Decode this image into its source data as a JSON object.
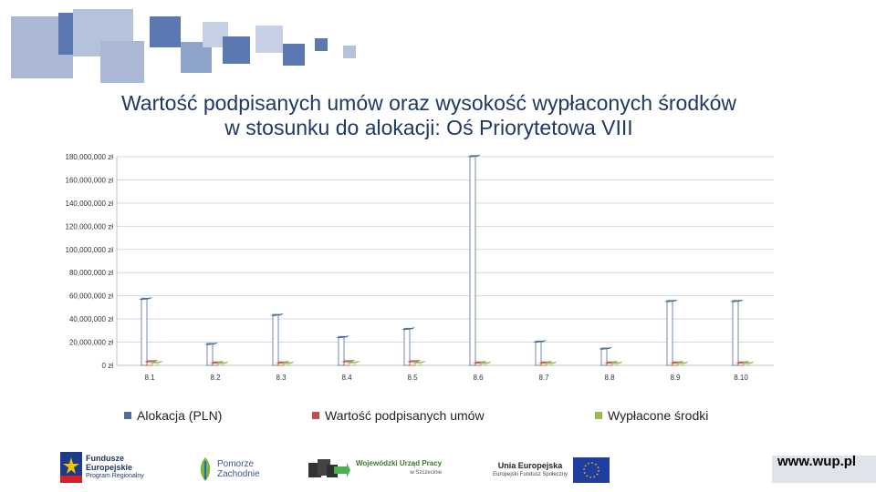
{
  "slide": {
    "title_line1": "Wartość podpisanych umów oraz wysokość wypłaconych środków",
    "title_line2": "w stosunku do alokacji: Oś Priorytetowa VIII",
    "url": "www.wup.pl"
  },
  "colors": {
    "alokacja": "#4f6f99",
    "umowy": "#c0504d",
    "wyplacone": "#9bbb59",
    "deco_dark": "#5b78b0",
    "deco_light": "#b4c2db"
  },
  "logos": {
    "fe_line1": "Fundusze",
    "fe_line2": "Europejskie",
    "fe_line3": "Program Regionalny",
    "pomorze_line1": "Pomorze",
    "pomorze_line2": "Zachodnie",
    "wup_line1": "Wojewódzki Urząd Pracy",
    "wup_line2": "w Szczecinie",
    "ue_line1": "Unia Europejska",
    "ue_line2": "Europejski Fundusz Społeczny"
  },
  "chart_data": {
    "type": "bar",
    "title": "",
    "xlabel": "",
    "ylabel": "",
    "categories": [
      "8.1",
      "8.2",
      "8.3",
      "8.4",
      "8.5",
      "8.6",
      "8.7",
      "8.8",
      "8.9",
      "8.10"
    ],
    "ylim": [
      0,
      180000000
    ],
    "yticks": [
      "0 zł",
      "20,000,000 zł",
      "40,000,000 zł",
      "60,000,000 zł",
      "80,000,000 zł",
      "100,000,000 zł",
      "120,000,000 zł",
      "140,000,000 zł",
      "160,000,000 zł",
      "180,000,000 zł"
    ],
    "ytick_values": [
      0,
      20000000,
      40000000,
      60000000,
      80000000,
      100000000,
      120000000,
      140000000,
      160000000,
      180000000
    ],
    "grid": true,
    "legend": "bottom",
    "series": [
      {
        "name": "Alokacja (PLN)",
        "color": "#4f6f99",
        "values": [
          58000000,
          19000000,
          44000000,
          25000000,
          32000000,
          181000000,
          21000000,
          15000000,
          56000000,
          56000000
        ]
      },
      {
        "name": "Wartość podpisanych umów",
        "color": "#c0504d",
        "values": [
          4000000,
          3000000,
          3000000,
          4000000,
          4000000,
          3000000,
          3000000,
          3000000,
          3000000,
          3000000
        ]
      },
      {
        "name": "Wypłacone środki",
        "color": "#9bbb59",
        "values": [
          3000000,
          2500000,
          2500000,
          3000000,
          3000000,
          2500000,
          2500000,
          2500000,
          2500000,
          2500000
        ]
      }
    ]
  }
}
